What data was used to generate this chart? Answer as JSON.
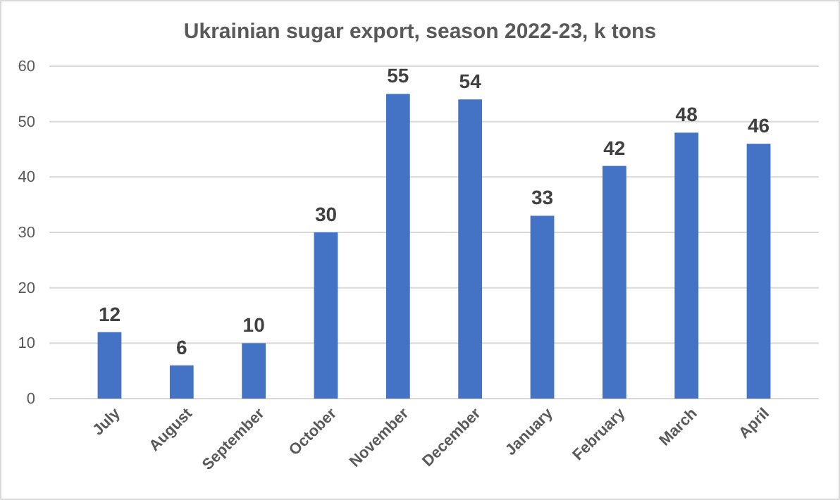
{
  "chart_data": {
    "type": "bar",
    "title": "Ukrainian sugar export, season 2022-23, k tons",
    "categories": [
      "July",
      "August",
      "September",
      "October",
      "November",
      "December",
      "January",
      "February",
      "March",
      "April"
    ],
    "values": [
      12,
      6,
      10,
      30,
      55,
      54,
      33,
      42,
      48,
      46
    ],
    "color": "#4472c4",
    "ylim": [
      0,
      60
    ],
    "yticks": [
      0,
      10,
      20,
      30,
      40,
      50,
      60
    ],
    "grid": "y",
    "data_labels": true
  }
}
